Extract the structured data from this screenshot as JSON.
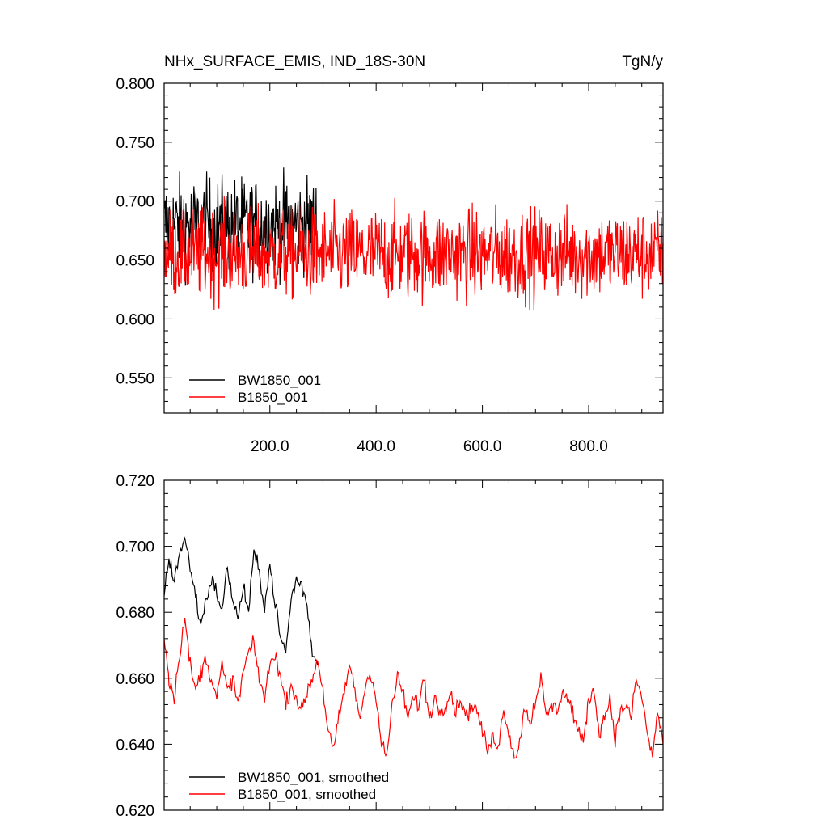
{
  "chart_data": [
    {
      "type": "line",
      "title": "NHx_SURFACE_EMIS, IND_18S-30N",
      "units": "TgN/y",
      "xlim": [
        1,
        940
      ],
      "ylim": [
        0.52,
        0.8
      ],
      "x_ticks": [
        200,
        400,
        600,
        800
      ],
      "x_tick_labels": [
        "200.0",
        "400.0",
        "600.0",
        "800.0"
      ],
      "y_ticks": [
        0.55,
        0.6,
        0.65,
        0.7,
        0.75,
        0.8
      ],
      "y_tick_labels": [
        "0.550",
        "0.600",
        "0.650",
        "0.700",
        "0.750",
        "0.800"
      ],
      "legend_position": "bottom-left",
      "series": [
        {
          "name": "BW1850_001",
          "color": "#000000",
          "x_start": 1,
          "x_end": 290,
          "mean": 0.68,
          "noise": 0.028
        },
        {
          "name": "B1850_001",
          "color": "#ff0000",
          "x_start": 1,
          "x_end": 940,
          "mean": 0.655,
          "noise": 0.027
        }
      ]
    },
    {
      "type": "line",
      "xlim": [
        1,
        940
      ],
      "ylim": [
        0.62,
        0.72
      ],
      "y_ticks": [
        0.62,
        0.64,
        0.66,
        0.68,
        0.7,
        0.72
      ],
      "y_tick_labels": [
        "0.620",
        "0.640",
        "0.660",
        "0.680",
        "0.700",
        "0.720"
      ],
      "legend_position": "bottom-left",
      "series": [
        {
          "name": "BW1850_001, smoothed",
          "color": "#000000",
          "x": [
            1,
            5,
            10,
            20,
            30,
            40,
            50,
            60,
            70,
            80,
            90,
            100,
            110,
            120,
            130,
            140,
            150,
            160,
            170,
            180,
            190,
            200,
            210,
            220,
            230,
            240,
            250,
            260,
            270,
            280,
            290
          ],
          "y": [
            0.687,
            0.69,
            0.696,
            0.69,
            0.698,
            0.702,
            0.694,
            0.685,
            0.676,
            0.684,
            0.69,
            0.686,
            0.68,
            0.694,
            0.684,
            0.678,
            0.688,
            0.68,
            0.698,
            0.692,
            0.682,
            0.694,
            0.683,
            0.672,
            0.668,
            0.684,
            0.69,
            0.688,
            0.682,
            0.668,
            0.664
          ]
        },
        {
          "name": "B1850_001, smoothed",
          "color": "#ff0000",
          "x": [
            1,
            5,
            10,
            20,
            30,
            40,
            50,
            60,
            70,
            80,
            90,
            100,
            110,
            120,
            130,
            140,
            150,
            160,
            170,
            180,
            190,
            200,
            210,
            220,
            230,
            240,
            250,
            260,
            270,
            280,
            290,
            300,
            310,
            320,
            330,
            340,
            350,
            360,
            370,
            380,
            390,
            400,
            410,
            420,
            430,
            440,
            450,
            460,
            470,
            480,
            490,
            500,
            510,
            520,
            530,
            540,
            550,
            560,
            570,
            580,
            590,
            600,
            610,
            620,
            630,
            640,
            650,
            660,
            670,
            680,
            690,
            700,
            710,
            720,
            730,
            740,
            750,
            760,
            770,
            780,
            790,
            800,
            810,
            820,
            830,
            840,
            850,
            860,
            870,
            880,
            890,
            900,
            910,
            920,
            930,
            940
          ],
          "y": [
            0.672,
            0.668,
            0.66,
            0.654,
            0.668,
            0.678,
            0.664,
            0.656,
            0.662,
            0.666,
            0.66,
            0.654,
            0.664,
            0.656,
            0.66,
            0.652,
            0.662,
            0.668,
            0.67,
            0.66,
            0.654,
            0.664,
            0.668,
            0.66,
            0.652,
            0.658,
            0.654,
            0.65,
            0.656,
            0.66,
            0.666,
            0.656,
            0.644,
            0.638,
            0.648,
            0.656,
            0.664,
            0.656,
            0.648,
            0.658,
            0.662,
            0.654,
            0.64,
            0.636,
            0.652,
            0.66,
            0.656,
            0.648,
            0.654,
            0.652,
            0.66,
            0.648,
            0.654,
            0.65,
            0.652,
            0.656,
            0.65,
            0.654,
            0.648,
            0.652,
            0.65,
            0.644,
            0.638,
            0.642,
            0.64,
            0.65,
            0.644,
            0.636,
            0.64,
            0.652,
            0.646,
            0.654,
            0.66,
            0.648,
            0.652,
            0.65,
            0.656,
            0.654,
            0.65,
            0.644,
            0.64,
            0.654,
            0.656,
            0.644,
            0.648,
            0.654,
            0.642,
            0.65,
            0.652,
            0.648,
            0.66,
            0.654,
            0.644,
            0.636,
            0.65,
            0.64
          ]
        }
      ]
    }
  ]
}
